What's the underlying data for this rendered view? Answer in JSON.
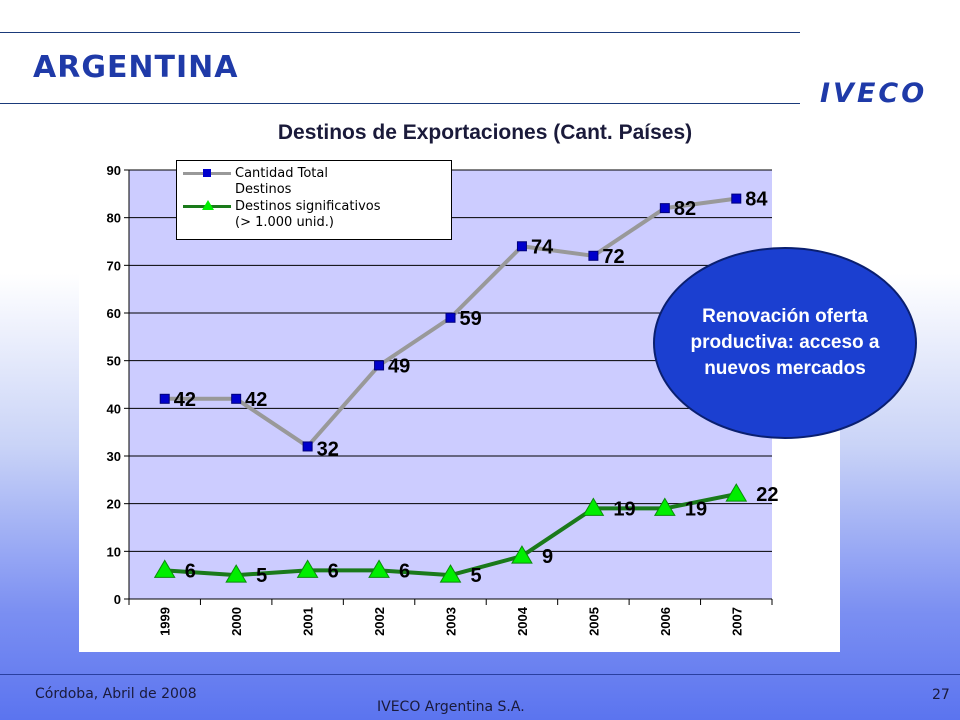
{
  "header": {
    "title": "ARGENTINA",
    "logo": "IVECO"
  },
  "chart_title": "Destinos de Exportaciones (Cant. Países)",
  "callout": "Renovación oferta productiva: acceso a nuevos mercados",
  "footer": {
    "place_date": "Córdoba, Abril de 2008",
    "company": "IVECO Argentina S.A.",
    "page_number": "27"
  },
  "colors": {
    "title": "#1f3aa8",
    "plot_background": "#ccccff",
    "series_total_line": "#999999",
    "series_total_marker": "#0000cc",
    "series_significant": "#1a7a1a",
    "series_significant_marker": "#00ee00",
    "callout_fill": "#1b3fd0"
  },
  "chart_data": {
    "type": "line",
    "title": "Destinos de Exportaciones (Cant. Países)",
    "x": [
      "1999",
      "2000",
      "2001",
      "2002",
      "2003",
      "2004",
      "2005",
      "2006",
      "2007"
    ],
    "ylim": [
      0,
      90
    ],
    "yticks": [
      0,
      10,
      20,
      30,
      40,
      50,
      60,
      70,
      80,
      90
    ],
    "grid": true,
    "legend_position": "top-left",
    "series": [
      {
        "name": "Cantidad Total\nDestinos",
        "values": [
          42,
          42,
          32,
          49,
          59,
          74,
          72,
          82,
          84
        ],
        "marker": "square"
      },
      {
        "name": "Destinos significativos\n(> 1.000 unid.)",
        "values": [
          6,
          5,
          6,
          6,
          5,
          9,
          19,
          19,
          22
        ],
        "marker": "triangle"
      }
    ]
  }
}
